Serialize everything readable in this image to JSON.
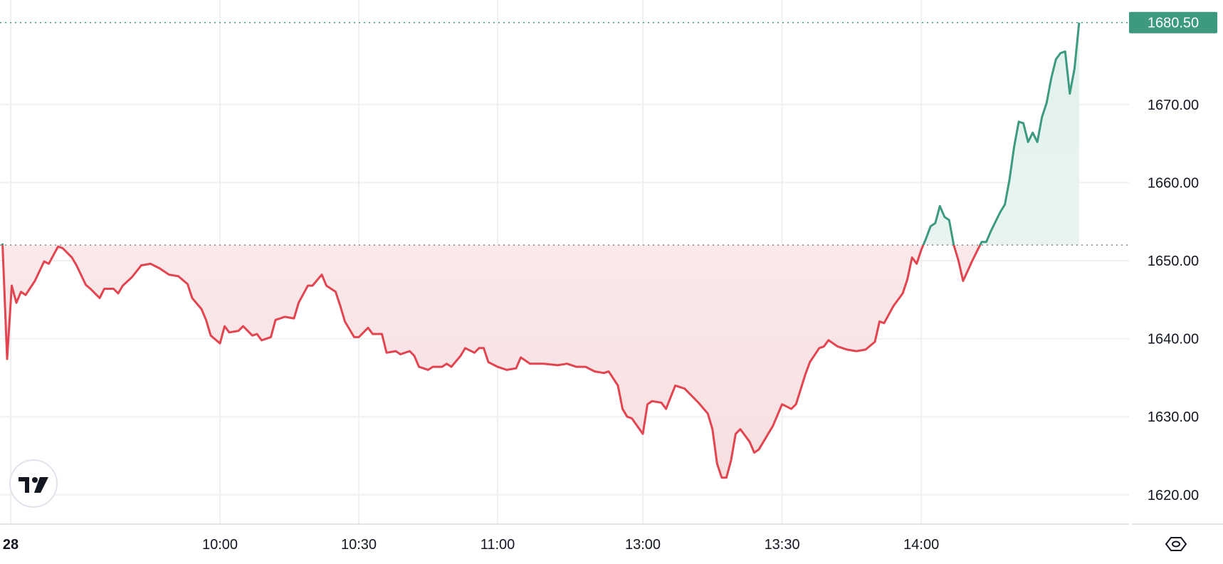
{
  "chart_data": {
    "type": "area",
    "baseline": 1652,
    "last_price_label": "1680.50",
    "ylim": [
      1615,
      1683
    ],
    "grid": true,
    "colors": {
      "up": "#3d9a80",
      "down": "#e2454f",
      "up_fill": "#e3f3ee",
      "down_fill": "#f7e0e1",
      "grid": "#f0f0f3",
      "axis_text": "#131722"
    },
    "y_ticks": [
      {
        "value": 1620,
        "label": "1620.00"
      },
      {
        "value": 1630,
        "label": "1630.00"
      },
      {
        "value": 1640,
        "label": "1640.00"
      },
      {
        "value": 1650,
        "label": "1650.00"
      },
      {
        "value": 1660,
        "label": "1660.00"
      },
      {
        "value": 1670,
        "label": "1670.00"
      }
    ],
    "x_ticks": [
      {
        "t": "09:14",
        "label": "28",
        "bold": true
      },
      {
        "t": "10:00",
        "label": "10:00"
      },
      {
        "t": "10:30",
        "label": "10:30"
      },
      {
        "t": "11:00",
        "label": "11:00"
      },
      {
        "t": "13:00",
        "label": "13:00"
      },
      {
        "t": "13:30",
        "label": "13:30"
      },
      {
        "t": "14:00",
        "label": "14:00"
      }
    ],
    "points": [
      [
        "09:13",
        1652.2
      ],
      [
        "09:14",
        1637.4
      ],
      [
        "09:15",
        1646.8
      ],
      [
        "09:16",
        1644.6
      ],
      [
        "09:17",
        1646.0
      ],
      [
        "09:18",
        1645.6
      ],
      [
        "09:20",
        1647.4
      ],
      [
        "09:22",
        1649.9
      ],
      [
        "09:23",
        1649.6
      ],
      [
        "09:25",
        1651.8
      ],
      [
        "09:26",
        1651.6
      ],
      [
        "09:28",
        1650.4
      ],
      [
        "09:29",
        1649.4
      ],
      [
        "09:31",
        1646.9
      ],
      [
        "09:32",
        1646.4
      ],
      [
        "09:34",
        1645.2
      ],
      [
        "09:35",
        1646.4
      ],
      [
        "09:37",
        1646.4
      ],
      [
        "09:38",
        1645.8
      ],
      [
        "09:39",
        1646.8
      ],
      [
        "09:41",
        1647.9
      ],
      [
        "09:43",
        1649.4
      ],
      [
        "09:45",
        1649.6
      ],
      [
        "09:47",
        1649.0
      ],
      [
        "09:49",
        1648.2
      ],
      [
        "09:51",
        1648.0
      ],
      [
        "09:53",
        1647.0
      ],
      [
        "09:54",
        1645.2
      ],
      [
        "09:56",
        1643.8
      ],
      [
        "09:57",
        1642.4
      ],
      [
        "09:58",
        1640.4
      ],
      [
        "10:00",
        1639.4
      ],
      [
        "10:01",
        1641.6
      ],
      [
        "10:02",
        1640.8
      ],
      [
        "10:04",
        1641.0
      ],
      [
        "10:05",
        1641.6
      ],
      [
        "10:07",
        1640.4
      ],
      [
        "10:08",
        1640.6
      ],
      [
        "10:09",
        1639.8
      ],
      [
        "10:11",
        1640.2
      ],
      [
        "10:12",
        1642.4
      ],
      [
        "10:14",
        1642.8
      ],
      [
        "10:16",
        1642.6
      ],
      [
        "10:17",
        1644.6
      ],
      [
        "10:19",
        1646.8
      ],
      [
        "10:20",
        1646.8
      ],
      [
        "10:22",
        1648.2
      ],
      [
        "10:23",
        1646.8
      ],
      [
        "10:25",
        1646.0
      ],
      [
        "10:26",
        1644.2
      ],
      [
        "10:27",
        1642.2
      ],
      [
        "10:29",
        1640.2
      ],
      [
        "10:30",
        1640.2
      ],
      [
        "10:32",
        1641.4
      ],
      [
        "10:33",
        1640.6
      ],
      [
        "10:35",
        1640.6
      ],
      [
        "10:36",
        1638.2
      ],
      [
        "10:38",
        1638.4
      ],
      [
        "10:39",
        1638.0
      ],
      [
        "10:41",
        1638.4
      ],
      [
        "10:42",
        1637.8
      ],
      [
        "10:43",
        1636.4
      ],
      [
        "10:45",
        1636.0
      ],
      [
        "10:46",
        1636.4
      ],
      [
        "10:48",
        1636.4
      ],
      [
        "10:49",
        1636.8
      ],
      [
        "10:50",
        1636.4
      ],
      [
        "10:52",
        1637.8
      ],
      [
        "10:53",
        1638.8
      ],
      [
        "10:55",
        1638.2
      ],
      [
        "10:56",
        1638.8
      ],
      [
        "10:57",
        1638.8
      ],
      [
        "10:58",
        1637.0
      ],
      [
        "11:00",
        1636.4
      ],
      [
        "11:02",
        1636.0
      ],
      [
        "11:04",
        1636.2
      ],
      [
        "11:05",
        1637.6
      ],
      [
        "11:07",
        1636.8
      ],
      [
        "11:10",
        1636.8
      ],
      [
        "11:13",
        1636.6
      ],
      [
        "11:15",
        1636.8
      ],
      [
        "11:17",
        1636.4
      ],
      [
        "11:19",
        1636.4
      ],
      [
        "11:21",
        1635.8
      ],
      [
        "11:23",
        1635.6
      ],
      [
        "11:24",
        1635.8
      ],
      [
        "11:26",
        1634.0
      ],
      [
        "11:27",
        1631.0
      ],
      [
        "11:28",
        1630.0
      ],
      [
        "11:29",
        1629.8
      ],
      [
        "13:00",
        1627.8
      ],
      [
        "13:01",
        1631.6
      ],
      [
        "13:02",
        1632.0
      ],
      [
        "13:04",
        1631.8
      ],
      [
        "13:05",
        1631.0
      ],
      [
        "13:07",
        1634.0
      ],
      [
        "13:09",
        1633.6
      ],
      [
        "13:10",
        1633.0
      ],
      [
        "13:12",
        1631.8
      ],
      [
        "13:14",
        1630.4
      ],
      [
        "13:15",
        1628.4
      ],
      [
        "13:16",
        1624.0
      ],
      [
        "13:17",
        1622.2
      ],
      [
        "13:18",
        1622.2
      ],
      [
        "13:19",
        1624.4
      ],
      [
        "13:20",
        1627.8
      ],
      [
        "13:21",
        1628.4
      ],
      [
        "13:23",
        1626.8
      ],
      [
        "13:24",
        1625.4
      ],
      [
        "13:25",
        1625.8
      ],
      [
        "13:27",
        1627.8
      ],
      [
        "13:28",
        1628.8
      ],
      [
        "13:29",
        1630.2
      ],
      [
        "13:30",
        1631.6
      ],
      [
        "13:32",
        1631.0
      ],
      [
        "13:33",
        1631.6
      ],
      [
        "13:35",
        1635.4
      ],
      [
        "13:36",
        1637.0
      ],
      [
        "13:38",
        1638.8
      ],
      [
        "13:39",
        1639.0
      ],
      [
        "13:40",
        1639.8
      ],
      [
        "13:42",
        1639.0
      ],
      [
        "13:44",
        1638.6
      ],
      [
        "13:46",
        1638.4
      ],
      [
        "13:48",
        1638.6
      ],
      [
        "13:50",
        1639.6
      ],
      [
        "13:51",
        1642.2
      ],
      [
        "13:52",
        1642.0
      ],
      [
        "13:54",
        1644.2
      ],
      [
        "13:56",
        1645.8
      ],
      [
        "13:57",
        1647.6
      ],
      [
        "13:58",
        1650.4
      ],
      [
        "13:59",
        1649.6
      ],
      [
        "14:00",
        1651.4
      ],
      [
        "14:01",
        1652.8
      ],
      [
        "14:02",
        1654.4
      ],
      [
        "14:03",
        1654.8
      ],
      [
        "14:04",
        1657.0
      ],
      [
        "14:05",
        1655.6
      ],
      [
        "14:06",
        1655.2
      ],
      [
        "14:07",
        1652.0
      ],
      [
        "14:08",
        1650.0
      ],
      [
        "14:09",
        1647.4
      ],
      [
        "14:11",
        1650.0
      ],
      [
        "14:12",
        1651.2
      ],
      [
        "14:13",
        1652.4
      ],
      [
        "14:14",
        1652.4
      ],
      [
        "14:15",
        1653.8
      ],
      [
        "14:17",
        1656.2
      ],
      [
        "14:18",
        1657.2
      ],
      [
        "14:19",
        1660.4
      ],
      [
        "14:20",
        1664.6
      ],
      [
        "14:21",
        1667.8
      ],
      [
        "14:22",
        1667.6
      ],
      [
        "14:23",
        1665.2
      ],
      [
        "14:24",
        1666.4
      ],
      [
        "14:25",
        1665.2
      ],
      [
        "14:26",
        1668.4
      ],
      [
        "14:27",
        1670.2
      ],
      [
        "14:28",
        1673.4
      ],
      [
        "14:29",
        1675.8
      ],
      [
        "14:30",
        1676.6
      ],
      [
        "14:31",
        1676.8
      ],
      [
        "14:32",
        1671.4
      ],
      [
        "14:33",
        1674.6
      ],
      [
        "14:34",
        1680.5
      ]
    ]
  },
  "icons": {
    "logo": "tradingview-logo",
    "settings": "settings-hexagon-icon"
  }
}
